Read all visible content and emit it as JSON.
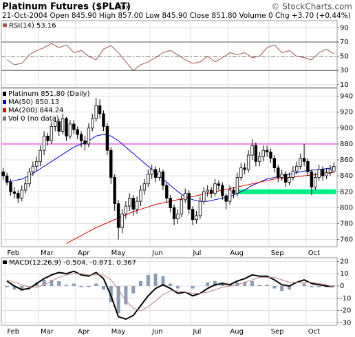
{
  "header": {
    "title": "Platinum Futures ($PLAT)",
    "exchange": "INDX",
    "credit": "© StockCharts.com",
    "quote": "21-Oct-2004 Open 845.90 High 857.00 Low 845.90 Close 851.80 Volume 0 Chg +3.70 (+0.44%)"
  },
  "chart_data": [
    {
      "type": "rsi",
      "title": "RSI(14) 53.16",
      "color": "#a0584a",
      "x": [
        1,
        3,
        5,
        7,
        9,
        11,
        13,
        15,
        17,
        19,
        21,
        23,
        25,
        27,
        29,
        31,
        33,
        35,
        37,
        39,
        41,
        43,
        45,
        47,
        49,
        51,
        53,
        55,
        57,
        59,
        61,
        63,
        65,
        67,
        69,
        71,
        73,
        75,
        77,
        79,
        81,
        83,
        85,
        87,
        89
      ],
      "values": [
        45,
        38,
        40,
        52,
        58,
        62,
        68,
        62,
        66,
        55,
        58,
        50,
        45,
        60,
        65,
        55,
        42,
        30,
        38,
        42,
        48,
        55,
        58,
        52,
        45,
        40,
        42,
        50,
        42,
        48,
        55,
        52,
        55,
        48,
        50,
        62,
        66,
        55,
        58,
        50,
        48,
        45,
        55,
        60,
        53.16
      ],
      "bands": [
        30,
        70
      ],
      "center": 50,
      "ylim": [
        6,
        100
      ],
      "yticks": [
        10,
        30,
        50,
        70,
        90
      ]
    },
    {
      "type": "candlestick",
      "title": "Platinum 851.80 (Daily)",
      "volume_legend": "Vol 0 (no data)",
      "color": "#000000",
      "ohlc": [
        [
          845,
          850,
          835,
          840
        ],
        [
          840,
          844,
          828,
          832
        ],
        [
          832,
          836,
          815,
          820
        ],
        [
          820,
          826,
          812,
          818
        ],
        [
          818,
          822,
          806,
          812
        ],
        [
          812,
          828,
          808,
          822
        ],
        [
          822,
          836,
          818,
          830
        ],
        [
          830,
          850,
          826,
          845
        ],
        [
          845,
          858,
          840,
          852
        ],
        [
          852,
          864,
          846,
          858
        ],
        [
          858,
          878,
          852,
          872
        ],
        [
          872,
          896,
          866,
          890
        ],
        [
          890,
          894,
          878,
          884
        ],
        [
          884,
          908,
          880,
          902
        ],
        [
          902,
          914,
          896,
          908
        ],
        [
          908,
          912,
          890,
          896
        ],
        [
          896,
          918,
          892,
          912
        ],
        [
          912,
          914,
          884,
          890
        ],
        [
          890,
          910,
          886,
          905
        ],
        [
          905,
          910,
          892,
          898
        ],
        [
          898,
          902,
          886,
          892
        ],
        [
          892,
          896,
          876,
          884
        ],
        [
          884,
          890,
          872,
          880
        ],
        [
          880,
          906,
          876,
          900
        ],
        [
          900,
          918,
          896,
          912
        ],
        [
          912,
          938,
          908,
          928
        ],
        [
          928,
          936,
          912,
          918
        ],
        [
          918,
          922,
          896,
          902
        ],
        [
          902,
          906,
          866,
          872
        ],
        [
          872,
          876,
          830,
          838
        ],
        [
          838,
          842,
          796,
          805
        ],
        [
          805,
          810,
          760,
          775
        ],
        [
          775,
          798,
          768,
          792
        ],
        [
          792,
          808,
          786,
          802
        ],
        [
          802,
          818,
          796,
          812
        ],
        [
          812,
          816,
          790,
          798
        ],
        [
          798,
          814,
          792,
          808
        ],
        [
          808,
          828,
          802,
          822
        ],
        [
          822,
          836,
          816,
          830
        ],
        [
          830,
          848,
          826,
          842
        ],
        [
          842,
          854,
          836,
          848
        ],
        [
          848,
          852,
          832,
          838
        ],
        [
          838,
          850,
          834,
          845
        ],
        [
          845,
          848,
          822,
          828
        ],
        [
          828,
          832,
          806,
          812
        ],
        [
          812,
          816,
          794,
          800
        ],
        [
          800,
          804,
          778,
          786
        ],
        [
          786,
          798,
          780,
          792
        ],
        [
          792,
          816,
          788,
          810
        ],
        [
          810,
          824,
          806,
          818
        ],
        [
          818,
          822,
          792,
          798
        ],
        [
          798,
          802,
          778,
          785
        ],
        [
          785,
          796,
          780,
          790
        ],
        [
          790,
          814,
          786,
          808
        ],
        [
          808,
          826,
          804,
          820
        ],
        [
          820,
          828,
          814,
          822
        ],
        [
          822,
          826,
          812,
          818
        ],
        [
          818,
          836,
          814,
          830
        ],
        [
          830,
          834,
          822,
          828
        ],
        [
          828,
          832,
          810,
          815
        ],
        [
          815,
          818,
          798,
          808
        ],
        [
          808,
          828,
          804,
          822
        ],
        [
          822,
          826,
          812,
          818
        ],
        [
          818,
          844,
          814,
          838
        ],
        [
          838,
          856,
          834,
          850
        ],
        [
          850,
          856,
          842,
          848
        ],
        [
          848,
          872,
          844,
          866
        ],
        [
          866,
          886,
          860,
          878
        ],
        [
          878,
          882,
          852,
          858
        ],
        [
          858,
          870,
          852,
          864
        ],
        [
          864,
          878,
          858,
          872
        ],
        [
          872,
          878,
          864,
          870
        ],
        [
          870,
          874,
          856,
          862
        ],
        [
          862,
          866,
          844,
          850
        ],
        [
          850,
          854,
          832,
          838
        ],
        [
          838,
          848,
          834,
          842
        ],
        [
          842,
          846,
          826,
          832
        ],
        [
          832,
          844,
          828,
          838
        ],
        [
          838,
          852,
          834,
          846
        ],
        [
          846,
          858,
          842,
          852
        ],
        [
          852,
          868,
          848,
          862
        ],
        [
          862,
          880,
          852,
          858
        ],
        [
          858,
          862,
          840,
          845
        ],
        [
          845,
          848,
          816,
          826
        ],
        [
          826,
          844,
          822,
          838
        ],
        [
          838,
          854,
          834,
          848
        ],
        [
          848,
          852,
          834,
          840
        ],
        [
          840,
          850,
          836,
          844
        ],
        [
          844,
          854,
          840,
          848
        ],
        [
          845.9,
          857,
          845.9,
          851.8
        ]
      ],
      "series": [
        {
          "name": "MA(50) 850.13",
          "color": "#0000cc",
          "x": [
            1,
            3,
            5,
            7,
            9,
            11,
            13,
            15,
            17,
            19,
            21,
            23,
            25,
            27,
            29,
            31,
            33,
            35,
            37,
            39,
            41,
            43,
            45,
            47,
            49,
            51,
            53,
            55,
            57,
            59,
            61,
            63,
            65,
            67,
            69,
            71,
            73,
            75,
            77,
            79,
            81,
            83,
            85,
            87,
            89
          ],
          "values": [
            832,
            834,
            836,
            840,
            846,
            852,
            858,
            864,
            870,
            876,
            880,
            884,
            890,
            892,
            890,
            884,
            876,
            868,
            860,
            852,
            844,
            836,
            828,
            820,
            814,
            810,
            808,
            808,
            810,
            812,
            814,
            818,
            822,
            828,
            832,
            836,
            838,
            840,
            842,
            844,
            846,
            847,
            848,
            849,
            850.13
          ]
        },
        {
          "name": "MA(200) 844.24",
          "color": "#dd0000",
          "x": [
            1,
            3,
            5,
            7,
            9,
            11,
            13,
            15,
            17,
            19,
            21,
            23,
            25,
            27,
            29,
            31,
            33,
            35,
            37,
            39,
            41,
            43,
            45,
            47,
            49,
            51,
            53,
            55,
            57,
            59,
            61,
            63,
            65,
            67,
            69,
            71,
            73,
            75,
            77,
            79,
            81,
            83,
            85,
            87,
            89
          ],
          "values": [
            null,
            null,
            null,
            null,
            null,
            null,
            null,
            null,
            755,
            760,
            765,
            770,
            775,
            779,
            783,
            787,
            791,
            795,
            798,
            801,
            804,
            806,
            808,
            810,
            812,
            814,
            816,
            818,
            820,
            822,
            824,
            826,
            828,
            830,
            832,
            834,
            836,
            837,
            838,
            839,
            840,
            841,
            842,
            843,
            844.24
          ]
        }
      ],
      "hline": {
        "value": 880,
        "color": "#ee82ee"
      },
      "band": {
        "value": 820,
        "x": [
          63,
          89
        ],
        "color": "#00ee88"
      },
      "xticks": [
        {
          "value": 1,
          "label": "Feb"
        },
        {
          "value": 10,
          "label": "Mar"
        },
        {
          "value": 20,
          "label": "Apr"
        },
        {
          "value": 29,
          "label": "May"
        },
        {
          "value": 40,
          "label": "Jun"
        },
        {
          "value": 51,
          "label": "Jul"
        },
        {
          "value": 61,
          "label": "Aug"
        },
        {
          "value": 72,
          "label": "Sep"
        },
        {
          "value": 82,
          "label": "Oct"
        }
      ],
      "ylim": [
        751,
        950
      ],
      "yticks": [
        760,
        780,
        800,
        820,
        840,
        860,
        880,
        900,
        920,
        940
      ]
    },
    {
      "type": "macd",
      "title": "MACD(12,26,9) -0.504, -0.871, 0.367",
      "x": [
        1,
        3,
        5,
        7,
        9,
        11,
        13,
        15,
        17,
        19,
        21,
        23,
        25,
        27,
        29,
        31,
        33,
        35,
        37,
        39,
        41,
        43,
        45,
        47,
        49,
        51,
        53,
        55,
        57,
        59,
        61,
        63,
        65,
        67,
        69,
        71,
        73,
        75,
        77,
        79,
        81,
        83,
        85,
        87,
        89
      ],
      "series": [
        {
          "color": "#000000",
          "values": [
            4,
            0,
            -3,
            -2,
            2,
            6,
            9,
            11,
            10,
            12,
            9,
            8,
            11,
            6,
            -8,
            -25,
            -27,
            -24,
            -16,
            -8,
            -2,
            1,
            -2,
            -6,
            -5,
            -8,
            -6,
            -2,
            1,
            2,
            1,
            4,
            6,
            9,
            8,
            8,
            5,
            1,
            0,
            3,
            5,
            2,
            1,
            0,
            -0.504
          ]
        },
        {
          "color": "#c08080",
          "values": [
            5,
            3,
            1,
            -1,
            -1,
            1,
            4,
            7,
            9,
            10,
            10,
            9,
            9,
            9,
            5,
            -3,
            -12,
            -18,
            -20,
            -17,
            -12,
            -7,
            -4,
            -4,
            -5,
            -6,
            -6,
            -5,
            -3,
            -1,
            0,
            1,
            3,
            5,
            7,
            7,
            7,
            5,
            3,
            3,
            3,
            3,
            2,
            1,
            -0.871
          ]
        }
      ],
      "histogram": {
        "color": "#8c9cb4",
        "values": [
          -1,
          -3,
          -4,
          -1,
          3,
          5,
          5,
          4,
          1,
          2,
          -1,
          -1,
          2,
          -3,
          -13,
          -22,
          -15,
          -6,
          4,
          9,
          10,
          8,
          2,
          -2,
          0,
          -2,
          0,
          3,
          4,
          3,
          1,
          3,
          3,
          4,
          1,
          1,
          -2,
          -4,
          -3,
          0,
          2,
          -1,
          -1,
          -1,
          0.367
        ]
      },
      "xticks": [
        {
          "value": 1,
          "label": "Feb"
        },
        {
          "value": 10,
          "label": "Mar"
        },
        {
          "value": 20,
          "label": "Apr"
        },
        {
          "value": 29,
          "label": "May"
        },
        {
          "value": 40,
          "label": "Jun"
        },
        {
          "value": 51,
          "label": "Jul"
        },
        {
          "value": 61,
          "label": "Aug"
        },
        {
          "value": 72,
          "label": "Sep"
        },
        {
          "value": 82,
          "label": "Oct"
        }
      ],
      "ylim": [
        -32,
        23
      ],
      "yticks": [
        -30,
        -20,
        -10,
        0,
        10,
        20
      ]
    }
  ]
}
